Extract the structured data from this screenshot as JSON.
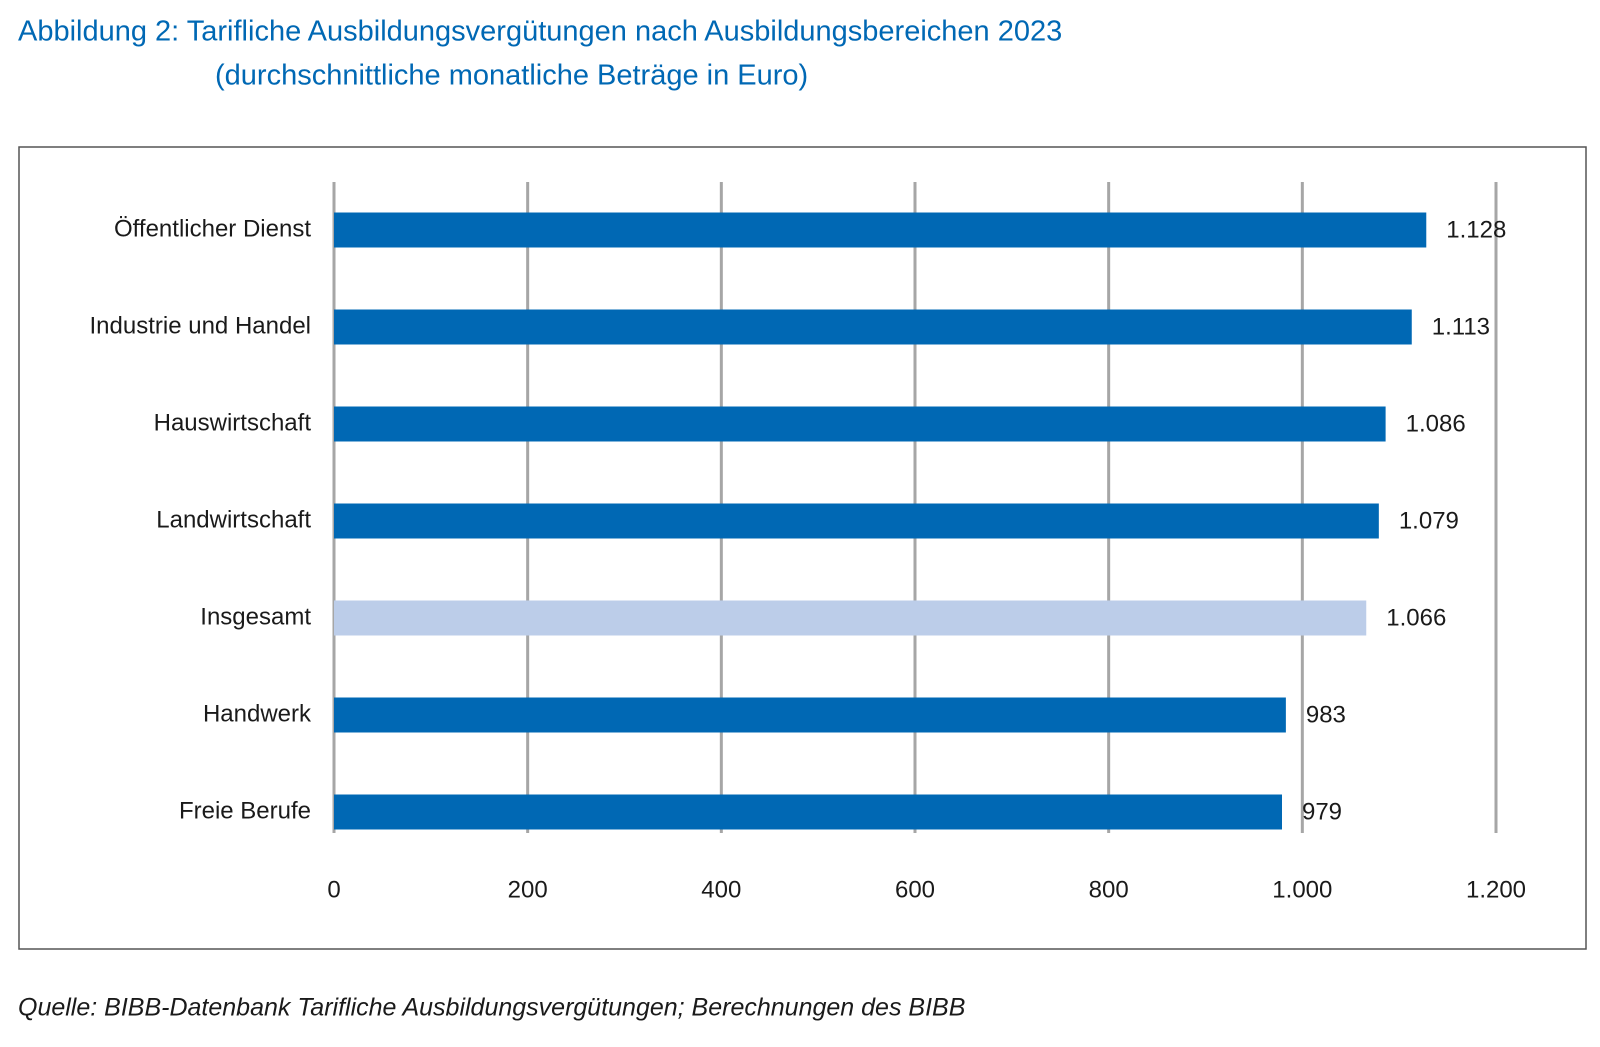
{
  "chart_data": {
    "type": "bar",
    "orientation": "horizontal",
    "title": "Abbildung 2: Tarifliche Ausbildungsvergütungen nach Ausbildungsbereichen 2023",
    "subtitle": "(durchschnittliche monatliche Beträge in Euro)",
    "source": "Quelle: BIBB-Datenbank Tarifliche Ausbildungsvergütungen; Berechnungen des BIBB",
    "categories": [
      "Öffentlicher Dienst",
      "Industrie und Handel",
      "Hauswirtschaft",
      "Landwirtschaft",
      "Insgesamt",
      "Handwerk",
      "Freie Berufe"
    ],
    "values": [
      1128,
      1113,
      1086,
      1079,
      1066,
      983,
      979
    ],
    "value_labels": [
      "1.128",
      "1.113",
      "1.086",
      "1.079",
      "1.066",
      "983",
      "979"
    ],
    "colors": [
      "#0068b4",
      "#0068b4",
      "#0068b4",
      "#0068b4",
      "#bccde9",
      "#0068b4",
      "#0068b4"
    ],
    "xlim": [
      0,
      1200
    ],
    "xticks": [
      0,
      200,
      400,
      600,
      800,
      {
        "value": 1000,
        "label": "1.000"
      },
      {
        "value": 1200,
        "label": "1.200"
      }
    ],
    "grid": true
  }
}
